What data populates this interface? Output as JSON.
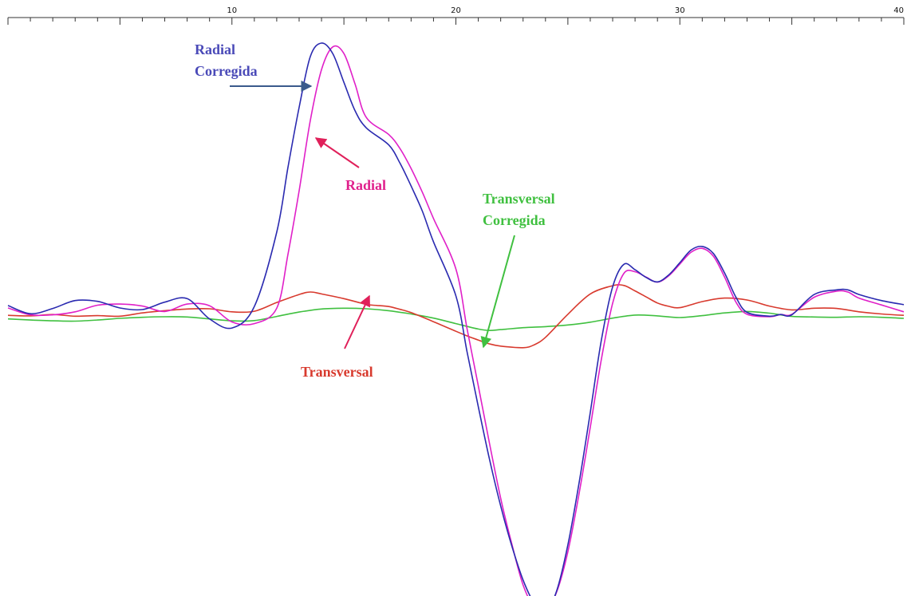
{
  "chart_data": {
    "type": "line",
    "title": "",
    "xlabel": "",
    "ylabel": "",
    "xlim": [
      0,
      40
    ],
    "ylim": [
      -1.0,
      1.0
    ],
    "grid": false,
    "x_ticks_labeled": [
      "10",
      "20",
      "30",
      "40"
    ],
    "series": [
      {
        "name": "Radial Corregida",
        "color": "#2a2ab0",
        "x": [
          0,
          1,
          2,
          3,
          4,
          5,
          6,
          7,
          8,
          9,
          10,
          11,
          12,
          12.5,
          13,
          13.5,
          14,
          14.5,
          15,
          15.5,
          16,
          17,
          17.5,
          18,
          18.5,
          19,
          20,
          20.5,
          21,
          21.5,
          22,
          22.5,
          23,
          23.5,
          24,
          24.5,
          25,
          25.5,
          26,
          26.5,
          27,
          27.5,
          28,
          28.5,
          29,
          29.5,
          30,
          30.5,
          31,
          31.5,
          32,
          32.5,
          33,
          34,
          34.5,
          35,
          36,
          37,
          37.5,
          38,
          39,
          40
        ],
        "y": [
          0.044,
          0.014,
          0.033,
          0.062,
          0.059,
          0.035,
          0.029,
          0.056,
          0.069,
          -0.005,
          -0.038,
          0.04,
          0.311,
          0.546,
          0.766,
          0.951,
          1.0,
          0.962,
          0.857,
          0.753,
          0.691,
          0.629,
          0.563,
          0.479,
          0.388,
          0.276,
          0.079,
          -0.125,
          -0.325,
          -0.516,
          -0.687,
          -0.833,
          -0.956,
          -1.041,
          -1.069,
          -0.996,
          -0.828,
          -0.603,
          -0.345,
          -0.08,
          0.112,
          0.194,
          0.174,
          0.146,
          0.13,
          0.155,
          0.2,
          0.246,
          0.259,
          0.233,
          0.162,
          0.075,
          0.019,
          0.005,
          0.011,
          0.01,
          0.084,
          0.101,
          0.101,
          0.084,
          0.062,
          0.047
        ]
      },
      {
        "name": "Radial",
        "color": "#e020c8",
        "x": [
          0,
          1,
          2,
          3,
          4,
          5,
          6,
          7,
          8,
          9,
          10,
          11,
          12,
          12.5,
          13,
          13.5,
          14,
          14.5,
          15,
          15.5,
          16,
          17,
          17.5,
          18,
          18.5,
          19,
          20,
          20.5,
          21,
          21.5,
          22,
          22.5,
          23,
          23.5,
          24,
          24.5,
          25,
          25.5,
          26,
          26.5,
          27,
          27.5,
          28,
          28.5,
          29,
          29.5,
          30,
          30.5,
          31,
          31.5,
          32,
          32.5,
          33,
          34,
          34.5,
          35,
          36,
          37,
          37.5,
          38,
          39,
          40
        ],
        "y": [
          0.035,
          0.01,
          0.01,
          0.021,
          0.045,
          0.049,
          0.042,
          0.022,
          0.049,
          0.043,
          -0.016,
          -0.022,
          0.034,
          0.229,
          0.462,
          0.718,
          0.903,
          0.986,
          0.962,
          0.85,
          0.729,
          0.667,
          0.616,
          0.543,
          0.457,
          0.361,
          0.177,
          -0.041,
          -0.249,
          -0.458,
          -0.659,
          -0.826,
          -0.974,
          -1.056,
          -1.067,
          -1.0,
          -0.853,
          -0.642,
          -0.399,
          -0.15,
          0.052,
          0.161,
          0.167,
          0.147,
          0.129,
          0.152,
          0.195,
          0.238,
          0.252,
          0.223,
          0.147,
          0.057,
          0.012,
          0.003,
          0.011,
          0.012,
          0.074,
          0.096,
          0.093,
          0.071,
          0.046,
          0.021
        ]
      },
      {
        "name": "Transversal",
        "color": "#d83a2e",
        "x": [
          0,
          1,
          2,
          3,
          4,
          5,
          6,
          7,
          8,
          9,
          10,
          11,
          12,
          13,
          13.5,
          14,
          15,
          16,
          16.5,
          17,
          17.5,
          18,
          19,
          20,
          20.5,
          21,
          21.5,
          22,
          23,
          23.5,
          24,
          25,
          26,
          27,
          27.5,
          28,
          28.5,
          29,
          29.5,
          30,
          31,
          32,
          33,
          34,
          35,
          36,
          37,
          38,
          39,
          40
        ],
        "y": [
          0.008,
          0.006,
          0.011,
          0.005,
          0.007,
          0.005,
          0.017,
          0.025,
          0.031,
          0.032,
          0.021,
          0.023,
          0.055,
          0.084,
          0.093,
          0.086,
          0.069,
          0.048,
          0.044,
          0.04,
          0.03,
          0.018,
          -0.015,
          -0.05,
          -0.067,
          -0.082,
          -0.096,
          -0.104,
          -0.11,
          -0.099,
          -0.072,
          0.012,
          0.086,
          0.116,
          0.117,
          0.097,
          0.075,
          0.053,
          0.041,
          0.036,
          0.058,
          0.071,
          0.064,
          0.042,
          0.028,
          0.034,
          0.033,
          0.021,
          0.013,
          0.008
        ]
      },
      {
        "name": "Transversal Corregida",
        "color": "#40c040",
        "x": [
          0,
          1,
          2,
          3,
          4,
          5,
          6,
          7,
          8,
          9,
          10,
          11,
          12,
          13,
          14,
          15,
          16,
          17,
          18,
          19,
          20,
          21,
          21.5,
          22,
          23,
          24,
          25,
          26,
          27,
          28,
          29,
          30,
          31,
          32,
          33,
          34,
          35,
          36,
          37,
          38,
          39,
          40
        ],
        "y": [
          -0.005,
          -0.009,
          -0.012,
          -0.013,
          -0.009,
          -0.003,
          0.001,
          0.003,
          0.002,
          -0.005,
          -0.012,
          -0.011,
          0.004,
          0.02,
          0.031,
          0.034,
          0.032,
          0.025,
          0.013,
          -0.002,
          -0.022,
          -0.042,
          -0.047,
          -0.044,
          -0.037,
          -0.033,
          -0.027,
          -0.017,
          -0.002,
          0.009,
          0.006,
          0.0,
          0.007,
          0.017,
          0.022,
          0.016,
          0.004,
          0.002,
          0.001,
          0.003,
          0.001,
          -0.003
        ]
      }
    ],
    "annotations": [
      {
        "label": "Radial Corregida",
        "series": "Radial Corregida"
      },
      {
        "label": "Radial",
        "series": "Radial"
      },
      {
        "label": "Transversal Corregida",
        "series": "Transversal Corregida"
      },
      {
        "label": "Transversal",
        "series": "Transversal"
      }
    ]
  }
}
